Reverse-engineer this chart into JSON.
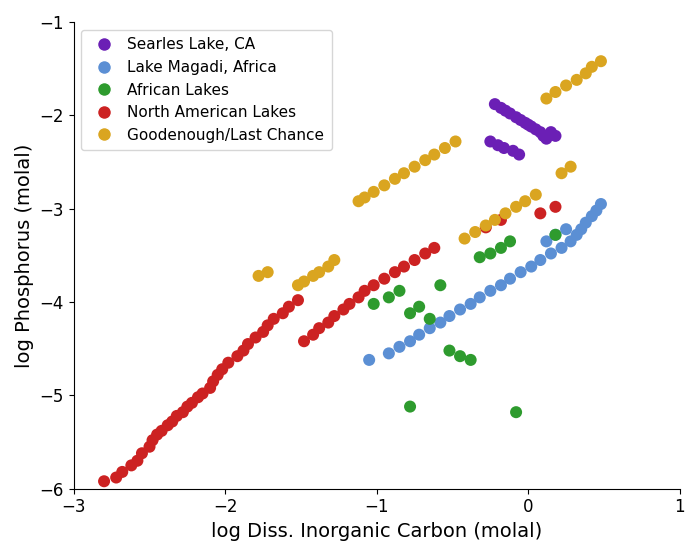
{
  "xlabel": "log Diss. Inorganic Carbon (molal)",
  "ylabel": "log Phosphorus (molal)",
  "xlim": [
    -3,
    1
  ],
  "ylim": [
    -6,
    -1
  ],
  "xticks": [
    -3,
    -2,
    -1,
    0,
    1
  ],
  "yticks": [
    -6,
    -5,
    -4,
    -3,
    -2,
    -1
  ],
  "legend_labels": [
    "Searles Lake, CA",
    "Lake Magadi, Africa",
    "African Lakes",
    "North American Lakes",
    "Goodenough/Last Chance"
  ],
  "legend_colors": [
    "#6B1FB5",
    "#5B8FD4",
    "#2E9B2E",
    "#CC2222",
    "#DAA520"
  ],
  "series": {
    "northamerican": {
      "color": "#CC2222",
      "x": [
        -2.8,
        -2.72,
        -2.68,
        -2.62,
        -2.58,
        -2.55,
        -2.5,
        -2.48,
        -2.45,
        -2.42,
        -2.38,
        -2.35,
        -2.32,
        -2.28,
        -2.25,
        -2.22,
        -2.18,
        -2.15,
        -2.1,
        -2.08,
        -2.05,
        -2.02,
        -1.98,
        -1.92,
        -1.88,
        -1.85,
        -1.8,
        -1.75,
        -1.72,
        -1.68,
        -1.62,
        -1.58,
        -1.52,
        -1.48,
        -1.42,
        -1.38,
        -1.32,
        -1.28,
        -1.22,
        -1.18,
        -1.12,
        -1.08,
        -1.02,
        -0.95,
        -0.88,
        -0.82,
        -0.75,
        -0.68,
        -0.62,
        -0.28,
        -0.18,
        0.08,
        0.18
      ],
      "y": [
        -5.92,
        -5.88,
        -5.82,
        -5.75,
        -5.7,
        -5.62,
        -5.55,
        -5.48,
        -5.42,
        -5.38,
        -5.32,
        -5.28,
        -5.22,
        -5.18,
        -5.12,
        -5.08,
        -5.02,
        -4.98,
        -4.92,
        -4.85,
        -4.78,
        -4.72,
        -4.65,
        -4.58,
        -4.52,
        -4.45,
        -4.38,
        -4.32,
        -4.25,
        -4.18,
        -4.12,
        -4.05,
        -3.98,
        -4.42,
        -4.35,
        -4.28,
        -4.22,
        -4.15,
        -4.08,
        -4.02,
        -3.95,
        -3.88,
        -3.82,
        -3.75,
        -3.68,
        -3.62,
        -3.55,
        -3.48,
        -3.42,
        -3.2,
        -3.12,
        -3.05,
        -2.98
      ]
    },
    "magadi": {
      "color": "#5B8FD4",
      "x": [
        -1.05,
        -0.92,
        -0.85,
        -0.78,
        -0.72,
        -0.65,
        -0.58,
        -0.52,
        -0.45,
        -0.38,
        -0.32,
        -0.25,
        -0.18,
        -0.12,
        -0.05,
        0.02,
        0.08,
        0.15,
        0.22,
        0.28,
        0.32,
        0.35,
        0.38,
        0.42,
        0.45,
        0.48,
        0.12,
        0.18,
        0.25
      ],
      "y": [
        -4.62,
        -4.55,
        -4.48,
        -4.42,
        -4.35,
        -4.28,
        -4.22,
        -4.15,
        -4.08,
        -4.02,
        -3.95,
        -3.88,
        -3.82,
        -3.75,
        -3.68,
        -3.62,
        -3.55,
        -3.48,
        -3.42,
        -3.35,
        -3.28,
        -3.22,
        -3.15,
        -3.08,
        -3.02,
        -2.95,
        -3.35,
        -3.28,
        -3.22
      ]
    },
    "african": {
      "color": "#2E9B2E",
      "x": [
        -1.02,
        -0.92,
        -0.85,
        -0.78,
        -0.72,
        -0.65,
        -0.58,
        -0.52,
        -0.45,
        -0.38,
        -0.32,
        -0.25,
        -0.18,
        -0.12,
        -0.78,
        -0.08,
        0.18
      ],
      "y": [
        -4.02,
        -3.95,
        -3.88,
        -4.12,
        -4.05,
        -4.18,
        -3.82,
        -4.52,
        -4.58,
        -4.62,
        -3.52,
        -3.48,
        -3.42,
        -3.35,
        -5.12,
        -5.18,
        -3.28
      ]
    },
    "goodenough": {
      "color": "#DAA520",
      "x": [
        -1.78,
        -1.72,
        -1.52,
        -1.48,
        -1.42,
        -1.38,
        -1.32,
        -1.28,
        -1.12,
        -1.08,
        -1.02,
        -0.95,
        -0.88,
        -0.82,
        -0.75,
        -0.68,
        -0.62,
        -0.55,
        -0.48,
        -0.42,
        -0.35,
        -0.28,
        -0.22,
        -0.15,
        -0.08,
        -0.02,
        0.05,
        0.12,
        0.18,
        0.25,
        0.32,
        0.38,
        0.42,
        0.48,
        0.22,
        0.28
      ],
      "y": [
        -3.72,
        -3.68,
        -3.82,
        -3.78,
        -3.72,
        -3.68,
        -3.62,
        -3.55,
        -2.92,
        -2.88,
        -2.82,
        -2.75,
        -2.68,
        -2.62,
        -2.55,
        -2.48,
        -2.42,
        -2.35,
        -2.28,
        -3.32,
        -3.25,
        -3.18,
        -3.12,
        -3.05,
        -2.98,
        -2.92,
        -2.85,
        -1.82,
        -1.75,
        -1.68,
        -1.62,
        -1.55,
        -1.48,
        -1.42,
        -2.62,
        -2.55
      ]
    },
    "searles": {
      "color": "#6B1FB5",
      "x": [
        -0.22,
        -0.18,
        -0.15,
        -0.12,
        -0.08,
        -0.05,
        -0.02,
        0.0,
        0.02,
        0.05,
        0.08,
        0.1,
        0.12,
        -0.25,
        -0.2,
        -0.16,
        -0.1,
        -0.06,
        0.15,
        0.18
      ],
      "y": [
        -1.88,
        -1.92,
        -1.95,
        -1.98,
        -2.02,
        -2.05,
        -2.08,
        -2.1,
        -2.12,
        -2.15,
        -2.18,
        -2.22,
        -2.25,
        -2.28,
        -2.32,
        -2.35,
        -2.38,
        -2.42,
        -2.18,
        -2.22
      ]
    }
  }
}
